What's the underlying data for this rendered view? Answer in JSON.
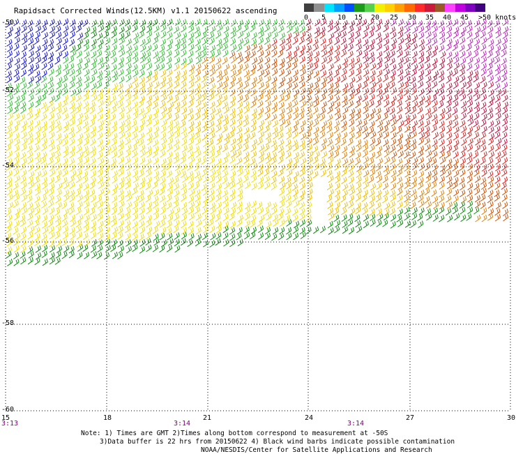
{
  "title": "Rapidsact Corrected Winds(12.5KM) v1.1 20150622 ascending",
  "colorbar": {
    "colors": [
      "#404040",
      "#909090",
      "#00e5ff",
      "#00a0ff",
      "#0050ff",
      "#1a9c1a",
      "#55d04a",
      "#f2f000",
      "#ffd000",
      "#ffa000",
      "#ff6a00",
      "#ff2a2a",
      "#cc1a3a",
      "#9a5a28",
      "#ff40ff",
      "#c000e0",
      "#8000c0",
      "#400080"
    ],
    "labels": [
      "0",
      "5",
      "10",
      "15",
      "20",
      "25",
      "30",
      "35",
      "40",
      "45",
      ">50 knots"
    ]
  },
  "lat_labels": [
    "-50",
    "-52",
    "-54",
    "-56",
    "-58",
    "-60"
  ],
  "lon_labels": [
    "15",
    "18",
    "21",
    "24",
    "27",
    "30"
  ],
  "time_labels": [
    "3:13",
    "3:14",
    "3:14"
  ],
  "note_lines": [
    "Note: 1) Times are GMT 2)Times along bottom correspond to measurement at -50S",
    "3)Data buffer is 22 hrs from 20150622 4) Black wind barbs indicate possible contamination",
    "NOAA/NESDIS/Center for Satellite Applications and Research"
  ],
  "wind_colors": {
    "blue": "#1010e0",
    "green_dark": "#0a8a0a",
    "green": "#30c030",
    "yellow": "#f0e000",
    "gold": "#f0c000",
    "orange": "#e88000",
    "dark_orange": "#d05000",
    "red": "#e02020",
    "crimson": "#c01040",
    "magenta": "#c020c0",
    "contam": "#000000"
  }
}
